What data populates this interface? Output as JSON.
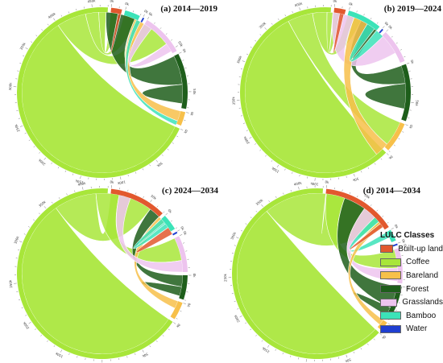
{
  "figure": {
    "legend_title": "LULC Classes"
  },
  "colors": {
    "Built-up land": "#E2582E",
    "Coffee": "#A8E63A",
    "Bareland": "#F7C04A",
    "Forest": "#1E5E1B",
    "Grasslands": "#EDC4EE",
    "Bamboo": "#3CE3B8",
    "Water": "#1F3FD1"
  },
  "ring_ticks": [
    "0k",
    "50k",
    "100k",
    "150k",
    "200k",
    "250k",
    "300k",
    "350k",
    "400k",
    "450k",
    "500k"
  ],
  "chart_data": [
    {
      "type": "chord",
      "title": "(a) 2014—2019",
      "classes": [
        "Built-up land",
        "Coffee",
        "Bareland",
        "Forest",
        "Grasslands",
        "Bamboo",
        "Water"
      ],
      "totals": {
        "Built-up land": 14,
        "Coffee": 470,
        "Bareland": 18,
        "Forest": 72,
        "Grasslands": 55,
        "Bamboo": 20,
        "Water": 2
      },
      "flows": [
        {
          "from": "Coffee",
          "to": "Coffee",
          "value": 400
        },
        {
          "from": "Coffee",
          "to": "Grasslands",
          "value": 40
        },
        {
          "from": "Coffee",
          "to": "Bamboo",
          "value": 18
        },
        {
          "from": "Coffee",
          "to": "Built-up land",
          "value": 10
        },
        {
          "from": "Forest",
          "to": "Coffee",
          "value": 40
        },
        {
          "from": "Forest",
          "to": "Forest",
          "value": 26
        },
        {
          "from": "Bareland",
          "to": "Coffee",
          "value": 14
        },
        {
          "from": "Grasslands",
          "to": "Coffee",
          "value": 12
        },
        {
          "from": "Bamboo",
          "to": "Bareland",
          "value": 6
        },
        {
          "from": "Built-up land",
          "to": "Built-up land",
          "value": 4
        }
      ]
    },
    {
      "type": "chord",
      "title": "(b) 2019—2024",
      "classes": [
        "Built-up land",
        "Coffee",
        "Bareland",
        "Forest",
        "Grasslands",
        "Bamboo",
        "Water"
      ],
      "totals": {
        "Built-up land": 15,
        "Coffee": 440,
        "Bareland": 40,
        "Forest": 75,
        "Grasslands": 45,
        "Bamboo": 45,
        "Water": 2
      },
      "flows": [
        {
          "from": "Coffee",
          "to": "Coffee",
          "value": 380
        },
        {
          "from": "Coffee",
          "to": "Bareland",
          "value": 35
        },
        {
          "from": "Coffee",
          "to": "Bamboo",
          "value": 20
        },
        {
          "from": "Coffee",
          "to": "Built-up land",
          "value": 8
        },
        {
          "from": "Forest",
          "to": "Bamboo",
          "value": 25
        },
        {
          "from": "Forest",
          "to": "Forest",
          "value": 35
        },
        {
          "from": "Grasslands",
          "to": "Coffee",
          "value": 30
        },
        {
          "from": "Bareland",
          "to": "Coffee",
          "value": 20
        },
        {
          "from": "Bamboo",
          "to": "Coffee",
          "value": 12
        },
        {
          "from": "Built-up land",
          "to": "Built-up land",
          "value": 6
        }
      ]
    },
    {
      "type": "chord",
      "title": "(c) 2024—2034",
      "classes": [
        "Built-up land",
        "Coffee",
        "Bareland",
        "Forest",
        "Grasslands",
        "Bamboo",
        "Water"
      ],
      "totals": {
        "Built-up land": 70,
        "Coffee": 430,
        "Bareland": 22,
        "Forest": 30,
        "Grasslands": 45,
        "Bamboo": 20,
        "Water": 2
      },
      "flows": [
        {
          "from": "Coffee",
          "to": "Coffee",
          "value": 360
        },
        {
          "from": "Coffee",
          "to": "Built-up land",
          "value": 55
        },
        {
          "from": "Coffee",
          "to": "Grasslands",
          "value": 30
        },
        {
          "from": "Forest",
          "to": "Built-up land",
          "value": 15
        },
        {
          "from": "Forest",
          "to": "Forest",
          "value": 12
        },
        {
          "from": "Bareland",
          "to": "Built-up land",
          "value": 10
        },
        {
          "from": "Grasslands",
          "to": "Coffee",
          "value": 15
        },
        {
          "from": "Bamboo",
          "to": "Built-up land",
          "value": 8
        },
        {
          "from": "Built-up land",
          "to": "Built-up land",
          "value": 10
        }
      ]
    },
    {
      "type": "chord",
      "title": "(d) 2014—2034",
      "classes": [
        "Built-up land",
        "Coffee",
        "Bareland",
        "Forest",
        "Grasslands",
        "Bamboo",
        "Water"
      ],
      "totals": {
        "Built-up land": 95,
        "Coffee": 430,
        "Bareland": 12,
        "Forest": 45,
        "Grasslands": 45,
        "Bamboo": 15,
        "Water": 2
      },
      "flows": [
        {
          "from": "Coffee",
          "to": "Coffee",
          "value": 350
        },
        {
          "from": "Coffee",
          "to": "Built-up land",
          "value": 85
        },
        {
          "from": "Coffee",
          "to": "Grasslands",
          "value": 25
        },
        {
          "from": "Forest",
          "to": "Coffee",
          "value": 30
        },
        {
          "from": "Forest",
          "to": "Forest",
          "value": 12
        },
        {
          "from": "Grasslands",
          "to": "Coffee",
          "value": 18
        },
        {
          "from": "Bamboo",
          "to": "Coffee",
          "value": 8
        },
        {
          "from": "Bareland",
          "to": "Coffee",
          "value": 8
        },
        {
          "from": "Built-up land",
          "to": "Built-up land",
          "value": 6
        }
      ]
    }
  ]
}
